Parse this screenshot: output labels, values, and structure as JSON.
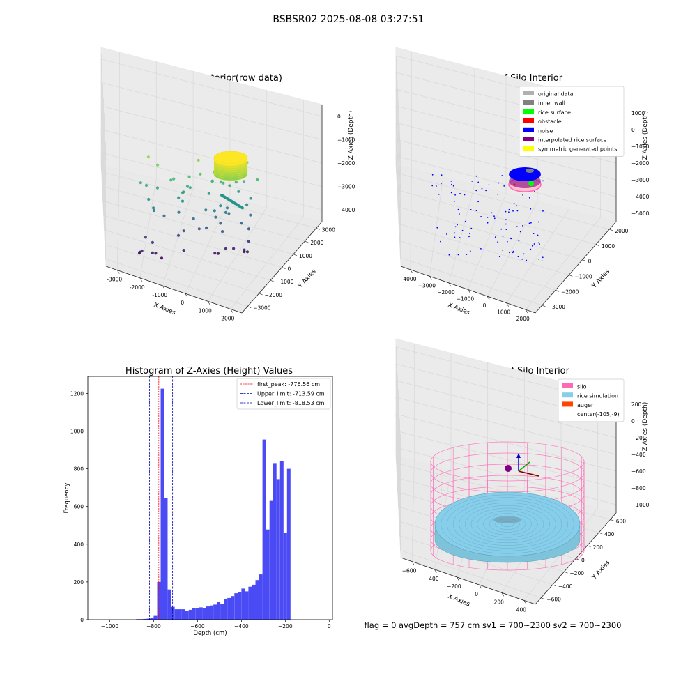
{
  "figure_title": "BSBSR02 2025-08-08 03:27:51",
  "footer_text": "flag = 0    avgDepth = 757 cm  sv1 = 700~2300  sv2 = 700~2300",
  "colors": {
    "histogram_bar": "#4b4bf5",
    "first_peak_line": "#ff0000",
    "limit_line": "#0000aa",
    "grid": "#d8d8d8",
    "pane": "#f2f2f2"
  },
  "chart_data": [
    {
      "type": "scatter",
      "projection": "3d",
      "title": "3D Plot of Silo Interior(row data)",
      "xlabel": "X Axies",
      "ylabel": "Y Axies",
      "zlabel": "Z Axies (Depth)",
      "x_ticks": [
        "-3000",
        "-2000",
        "-1000",
        "0",
        "1000",
        "2000"
      ],
      "y_ticks": [
        "3000",
        "2000",
        "1000",
        "0",
        "−1000",
        "−2000",
        "−3000"
      ],
      "z_ticks": [
        "0",
        "−1000",
        "−2000",
        "−3000",
        "−4000"
      ],
      "colormap": "viridis",
      "legend": "none"
    },
    {
      "type": "scatter",
      "projection": "3d",
      "title": "3D classify of Silo Interior",
      "xlabel": "X Axies",
      "ylabel": "Y Axies",
      "zlabel": "Z Axies (Depth)",
      "x_ticks": [
        "−4000",
        "−3000",
        "−2000",
        "−1000",
        "0",
        "1000",
        "2000"
      ],
      "y_ticks": [
        "2000",
        "1000",
        "0",
        "−1000",
        "−2000",
        "−3000"
      ],
      "z_ticks": [
        "1000",
        "0",
        "−1000",
        "−2000",
        "−3000",
        "−4000",
        "−5000"
      ],
      "legend_position": "top-right",
      "series": [
        {
          "name": "original data",
          "color": "#b0b0b0"
        },
        {
          "name": "inner wall",
          "color": "#808080"
        },
        {
          "name": "rice surface",
          "color": "#00ff00"
        },
        {
          "name": "obstacle",
          "color": "#ff0000"
        },
        {
          "name": "noise",
          "color": "#0000ff"
        },
        {
          "name": "interpolated rice surface",
          "color": "#800080"
        },
        {
          "name": "symmetric generated points",
          "color": "#ffff00"
        }
      ]
    },
    {
      "type": "bar",
      "title": "Histogram of Z-Axies (Height) Values",
      "xlabel": "Depth (cm)",
      "ylabel": "Frequency",
      "xlim": [
        -1100,
        15
      ],
      "ylim": [
        0,
        1290
      ],
      "x_ticks": [
        -1000,
        -800,
        -600,
        -400,
        -200,
        0
      ],
      "y_ticks": [
        0,
        200,
        400,
        600,
        800,
        1000,
        1200
      ],
      "bin_width": 16,
      "bins": [
        [
          -880,
          3
        ],
        [
          -864,
          3
        ],
        [
          -848,
          4
        ],
        [
          -832,
          5
        ],
        [
          -816,
          8
        ],
        [
          -800,
          20
        ],
        [
          -784,
          200
        ],
        [
          -768,
          1225
        ],
        [
          -752,
          645
        ],
        [
          -736,
          160
        ],
        [
          -720,
          68
        ],
        [
          -704,
          55
        ],
        [
          -688,
          55
        ],
        [
          -672,
          55
        ],
        [
          -656,
          48
        ],
        [
          -640,
          52
        ],
        [
          -624,
          60
        ],
        [
          -608,
          60
        ],
        [
          -592,
          65
        ],
        [
          -576,
          60
        ],
        [
          -560,
          70
        ],
        [
          -544,
          75
        ],
        [
          -528,
          80
        ],
        [
          -512,
          95
        ],
        [
          -496,
          85
        ],
        [
          -480,
          110
        ],
        [
          -464,
          115
        ],
        [
          -448,
          125
        ],
        [
          -432,
          140
        ],
        [
          -416,
          145
        ],
        [
          -400,
          165
        ],
        [
          -384,
          150
        ],
        [
          -368,
          175
        ],
        [
          -352,
          185
        ],
        [
          -336,
          210
        ],
        [
          -320,
          240
        ],
        [
          -304,
          955
        ],
        [
          -288,
          478
        ],
        [
          -272,
          630
        ],
        [
          -256,
          830
        ],
        [
          -240,
          745
        ],
        [
          -224,
          840
        ],
        [
          -208,
          460
        ],
        [
          -192,
          800
        ]
      ],
      "vlines": [
        {
          "label": "first_peak: -776.56 cm",
          "x": -776.56,
          "color": "#ff0000"
        },
        {
          "label": "Upper_limit: -713.59 cm",
          "x": -713.59,
          "color": "#0000aa"
        },
        {
          "label": "Lower_limit: -818.53 cm",
          "x": -818.53,
          "color": "#0000aa"
        }
      ],
      "legend_position": "top-right"
    },
    {
      "type": "surface",
      "projection": "3d",
      "title": "3D simulation of Silo Interior",
      "xlabel": "X Axies",
      "ylabel": "Y Axies",
      "zlabel": "Z Axies (Depth)",
      "x_ticks": [
        "−600",
        "−400",
        "−200",
        "0",
        "200",
        "400"
      ],
      "y_ticks": [
        "600",
        "400",
        "200",
        "0",
        "−200",
        "−400",
        "−600"
      ],
      "z_ticks": [
        "200",
        "0",
        "−200",
        "−400",
        "−600",
        "−800",
        "−1000"
      ],
      "legend_position": "top-right",
      "series": [
        {
          "name": "silo",
          "color": "#ff69b4"
        },
        {
          "name": "rice simulation",
          "color": "#87ceeb"
        },
        {
          "name": "auger",
          "color": "#ff4500"
        },
        {
          "name": "center(-105,-9)",
          "color": "#ffffff"
        }
      ]
    }
  ]
}
